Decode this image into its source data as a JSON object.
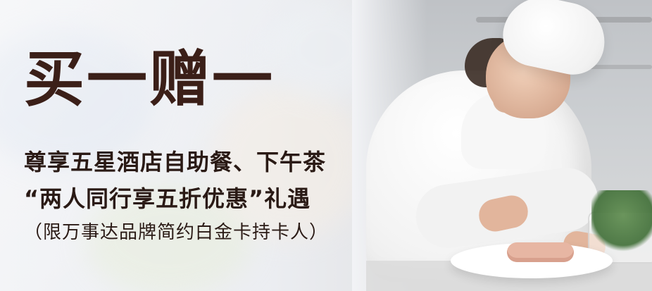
{
  "banner": {
    "title": "买一赠一",
    "line1": "尊享五星酒店自助餐、下午茶",
    "line2": "“两人同行享五折优惠”礼遇",
    "line3": "（限万事达品牌简约白金卡持卡人）"
  },
  "colors": {
    "title": "#3b1f18",
    "text": "#2a1a15",
    "background_left": "#f2f3f6",
    "background_right": "#cdd0d3"
  },
  "image": {
    "semantic": "chef-plating-dish"
  }
}
